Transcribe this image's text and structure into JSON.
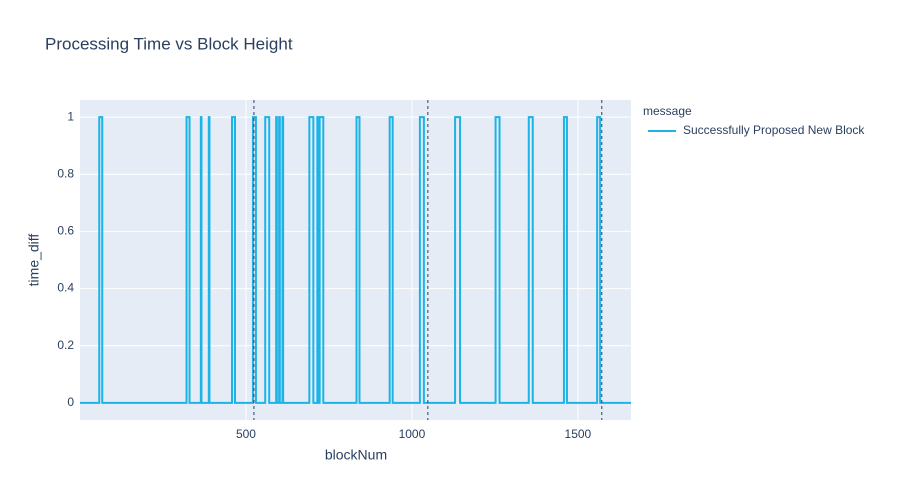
{
  "chart_data": {
    "type": "line",
    "title": "Processing Time vs Block Height",
    "x_label": "blockNum",
    "y_label": "time_diff",
    "legend_title": "message",
    "series": [
      {
        "name": "Successfully Proposed New Block",
        "color": "#1cb3e6",
        "x": [
          0,
          58,
          58,
          67,
          67,
          321,
          321,
          330,
          330,
          364,
          364,
          366,
          366,
          388,
          388,
          390,
          390,
          458,
          458,
          467,
          467,
          521,
          521,
          530,
          530,
          558,
          558,
          570,
          570,
          591,
          591,
          593,
          593,
          600,
          600,
          602,
          602,
          610,
          610,
          612,
          612,
          691,
          691,
          703,
          703,
          715,
          715,
          717,
          717,
          722,
          722,
          733,
          733,
          833,
          833,
          842,
          842,
          933,
          933,
          942,
          942,
          1024,
          1024,
          1036,
          1036,
          1130,
          1130,
          1145,
          1145,
          1252,
          1252,
          1264,
          1264,
          1352,
          1352,
          1364,
          1364,
          1458,
          1458,
          1467,
          1467,
          1558,
          1558,
          1567,
          1567,
          1660
        ],
        "values": [
          0,
          0,
          1,
          1,
          0,
          0,
          1,
          1,
          0,
          0,
          1,
          1,
          0,
          0,
          1,
          1,
          0,
          0,
          1,
          1,
          0,
          0,
          1,
          1,
          0,
          0,
          1,
          1,
          0,
          0,
          1,
          1,
          0,
          0,
          1,
          1,
          0,
          0,
          1,
          1,
          0,
          0,
          1,
          1,
          0,
          0,
          1,
          1,
          0,
          0,
          1,
          1,
          0,
          0,
          1,
          1,
          0,
          0,
          1,
          1,
          0,
          0,
          1,
          1,
          0,
          0,
          1,
          1,
          0,
          0,
          1,
          1,
          0,
          0,
          1,
          1,
          0,
          0,
          1,
          1,
          0,
          0,
          1,
          1,
          0,
          0
        ]
      }
    ],
    "vlines": [
      524,
      1048,
      1572
    ],
    "xlim": [
      0,
      1660
    ],
    "xticks": [
      500,
      1000,
      1500
    ],
    "ylim": [
      -0.06,
      1.06
    ],
    "yticks": [
      0,
      0.2,
      0.4,
      0.6,
      0.8,
      1
    ],
    "grid": true,
    "legend": "right"
  }
}
